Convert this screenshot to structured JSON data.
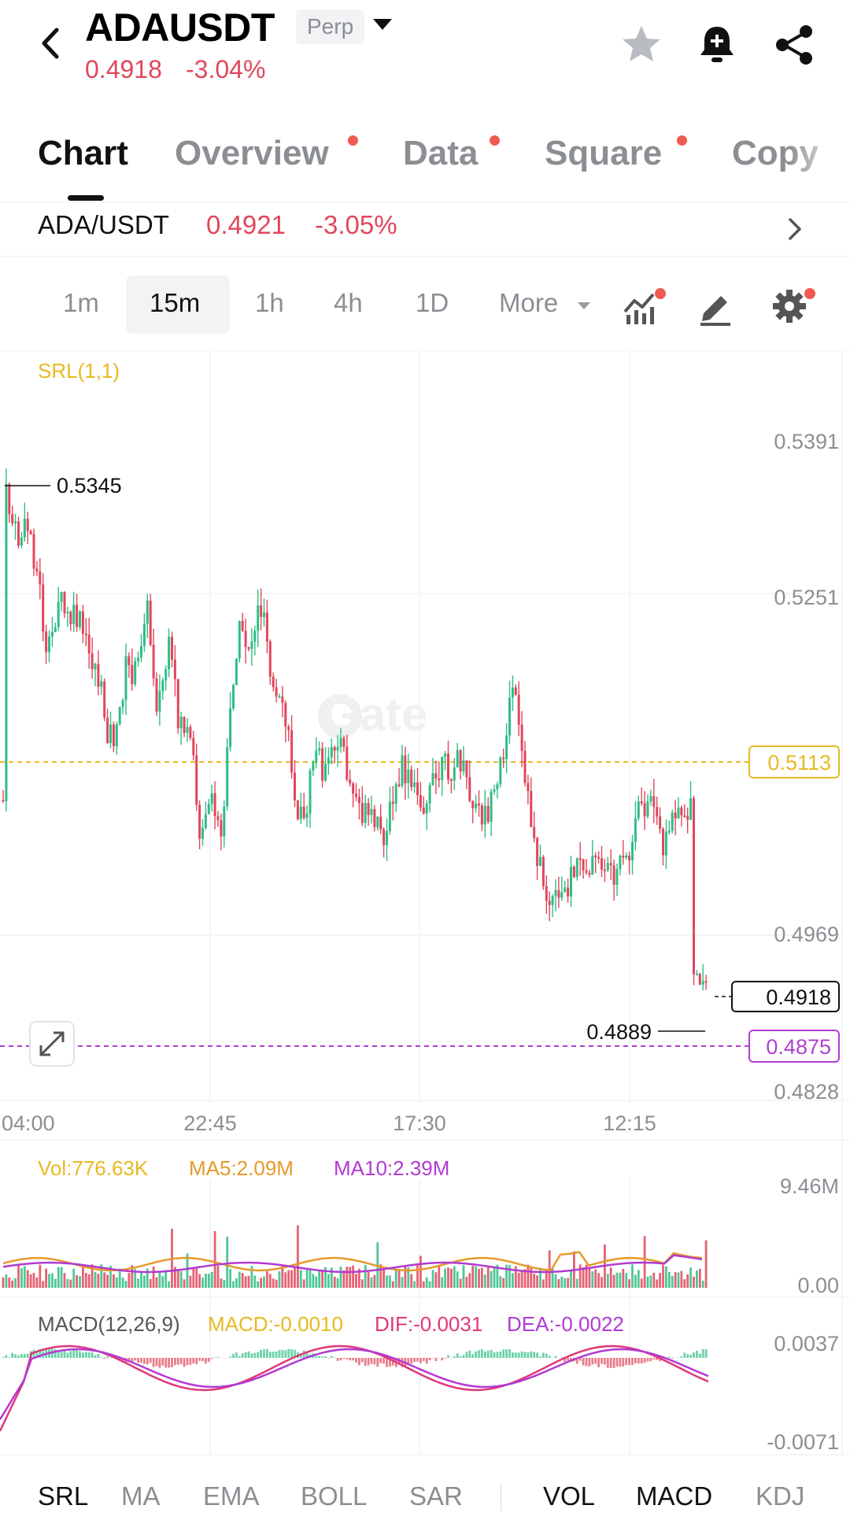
{
  "header": {
    "symbol": "ADAUSDT",
    "contract_type": "Perp",
    "last_price": "0.4918",
    "change_pct": "-3.04%"
  },
  "tabs": [
    {
      "label": "Chart",
      "active": true,
      "dot": false
    },
    {
      "label": "Overview",
      "active": false,
      "dot": true
    },
    {
      "label": "Data",
      "active": false,
      "dot": true
    },
    {
      "label": "Square",
      "active": false,
      "dot": true
    },
    {
      "label": "Copy",
      "active": false,
      "dot": false
    }
  ],
  "spot": {
    "pair": "ADA/USDT",
    "price": "0.4921",
    "change": "-3.05%"
  },
  "intervals": {
    "items": [
      "1m",
      "15m",
      "1h",
      "4h",
      "1D"
    ],
    "active": "15m",
    "more_label": "More"
  },
  "chart": {
    "indicator_label": "SRL(1,1)",
    "watermark": "Gate",
    "price_axis": [
      "0.5391",
      "0.5251",
      "0.4969",
      "0.4828"
    ],
    "time_axis": [
      "04:00",
      "22:45",
      "17:30",
      "12:15"
    ],
    "high_marker": "0.5345",
    "low_marker": "0.4889",
    "last_price_tag": "0.4918",
    "srl_upper_tag": "0.5113",
    "srl_lower_tag": "0.4875"
  },
  "volume": {
    "vol_label": "Vol:776.63K",
    "ma5_label": "MA5:2.09M",
    "ma10_label": "MA10:2.39M",
    "axis_max": "9.46M",
    "axis_min": "0.00"
  },
  "macd": {
    "title": "MACD(12,26,9)",
    "macd_label": "MACD:-0.0010",
    "dif_label": "DIF:-0.0031",
    "dea_label": "DEA:-0.0022",
    "axis_max": "0.0037",
    "axis_min": "-0.0071"
  },
  "indicator_tabs": {
    "main": [
      "SRL",
      "MA",
      "EMA",
      "BOLL",
      "SAR"
    ],
    "sub": [
      "VOL",
      "MACD",
      "KDJ"
    ],
    "active": [
      "SRL",
      "VOL",
      "MACD"
    ]
  },
  "colors": {
    "up": "#2fbd85",
    "down": "#e0475b",
    "srl_upper": "#e8b923",
    "srl_lower": "#b13fd3",
    "ma5": "#e59a2c",
    "ma10": "#b23ad1",
    "notification_dot": "#f05a50"
  }
}
